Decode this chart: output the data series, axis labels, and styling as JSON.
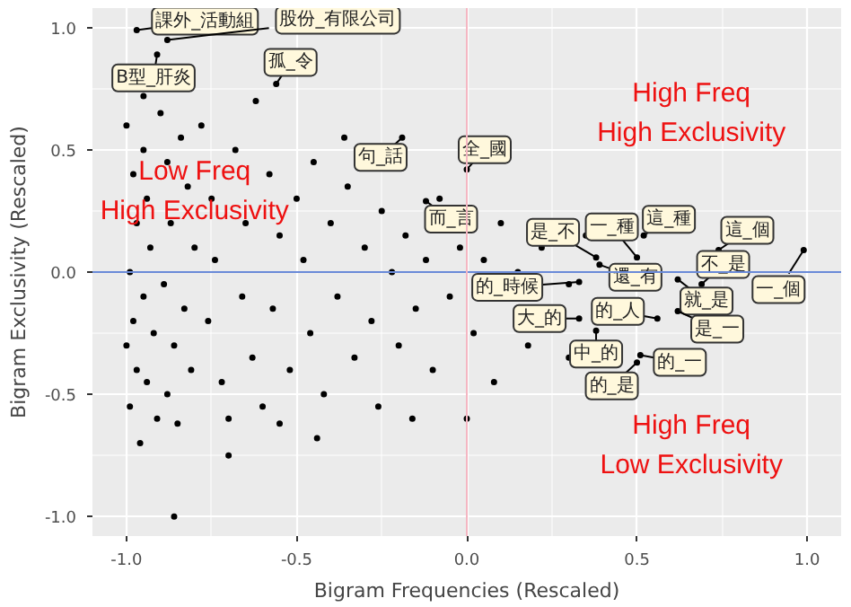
{
  "chart_data": {
    "type": "scatter",
    "xlabel": "Bigram Frequencies (Rescaled)",
    "ylabel": "Bigram Exclusivity (Rescaled)",
    "xlim": [
      -1.1,
      1.1
    ],
    "ylim": [
      -1.08,
      1.08
    ],
    "xticks": [
      {
        "value": -1,
        "label": "-1.0"
      },
      {
        "value": -0.5,
        "label": "-0.5"
      },
      {
        "value": 0,
        "label": "0.0"
      },
      {
        "value": 0.5,
        "label": "0.5"
      },
      {
        "value": 1,
        "label": "1.0"
      }
    ],
    "yticks": [
      {
        "value": -1,
        "label": "-1.0"
      },
      {
        "value": -0.5,
        "label": "-0.5"
      },
      {
        "value": 0,
        "label": "0.0"
      },
      {
        "value": 0.5,
        "label": "0.5"
      },
      {
        "value": 1,
        "label": "1.0"
      }
    ],
    "grid": true,
    "marker": "circle",
    "ref_lines": [
      {
        "axis": "y",
        "value": 0,
        "label": null,
        "color": "#6a8ad8"
      },
      {
        "axis": "x",
        "value": 0,
        "label": null,
        "color": "#f4b6c2"
      }
    ],
    "series": [
      {
        "color": "#000000",
        "x": [
          -1.0,
          -0.98,
          -0.97,
          -0.99,
          -0.98,
          -0.97,
          -0.99,
          -0.96,
          -1.0,
          -0.95,
          -0.94,
          -0.93,
          -0.95,
          -0.92,
          -0.94,
          -0.91,
          -0.9,
          -0.88,
          -0.87,
          -0.89,
          -0.86,
          -0.88,
          -0.85,
          -0.84,
          -0.82,
          -0.8,
          -0.83,
          -0.81,
          -0.86,
          -0.95,
          -0.78,
          -0.75,
          -0.74,
          -0.76,
          -0.72,
          -0.7,
          -0.68,
          -0.65,
          -0.66,
          -0.63,
          -0.6,
          -0.58,
          -0.55,
          -0.57,
          -0.52,
          -0.5,
          -0.62,
          -0.7,
          -0.55,
          -0.48,
          -0.46,
          -0.45,
          -0.42,
          -0.4,
          -0.38,
          -0.35,
          -0.33,
          -0.3,
          -0.28,
          -0.26,
          -0.25,
          -0.22,
          -0.2,
          -0.44,
          -0.36,
          -0.18,
          -0.15,
          -0.12,
          -0.1,
          -0.08,
          -0.05,
          -0.02,
          0.02,
          0.05,
          0.08,
          0.1,
          0.15,
          0.18,
          -0.16,
          0.0,
          0.22,
          0.3,
          0.35,
          0.3,
          -0.97,
          -0.88,
          -0.91,
          -0.56,
          -0.19,
          0.0,
          -0.12,
          0.38,
          0.39,
          0.5,
          0.52,
          0.62,
          0.74,
          0.69,
          0.99,
          0.33,
          0.33,
          0.56,
          0.62,
          0.38,
          0.51,
          0.5
        ],
        "values": [
          0.6,
          0.4,
          0.2,
          0.0,
          -0.2,
          -0.4,
          -0.55,
          -0.7,
          -0.3,
          0.5,
          0.3,
          0.1,
          -0.1,
          -0.25,
          -0.45,
          -0.6,
          0.65,
          0.45,
          0.2,
          -0.05,
          -0.3,
          -0.5,
          -0.62,
          0.55,
          0.35,
          0.1,
          -0.15,
          -0.4,
          -1.0,
          0.72,
          0.6,
          0.3,
          0.05,
          -0.2,
          -0.45,
          -0.6,
          0.5,
          0.2,
          -0.1,
          -0.35,
          -0.55,
          0.4,
          0.15,
          -0.15,
          -0.4,
          0.3,
          0.7,
          -0.75,
          -0.62,
          0.05,
          -0.25,
          0.45,
          -0.5,
          0.2,
          -0.1,
          0.35,
          -0.35,
          0.1,
          -0.2,
          -0.55,
          0.25,
          0.0,
          -0.3,
          -0.68,
          0.55,
          0.15,
          -0.15,
          0.05,
          -0.4,
          0.3,
          -0.1,
          0.1,
          -0.25,
          0.05,
          -0.45,
          0.2,
          0.0,
          -0.3,
          -0.6,
          -0.6,
          0.1,
          -0.35,
          0.15,
          -0.05,
          0.99,
          0.95,
          0.89,
          0.77,
          0.55,
          0.42,
          0.29,
          0.06,
          0.03,
          0.06,
          0.15,
          -0.03,
          0.09,
          -0.05,
          0.09,
          -0.04,
          -0.19,
          -0.19,
          -0.16,
          -0.24,
          -0.34,
          -0.37
        ]
      }
    ],
    "annotations": [
      {
        "text": "課外_活動組",
        "x": -0.97,
        "y": 0.99
      },
      {
        "text": "股份_有限公司",
        "x": -0.88,
        "y": 0.95
      },
      {
        "text": "B型_肝炎",
        "x": -0.91,
        "y": 0.89
      },
      {
        "text": "孤_令",
        "x": -0.56,
        "y": 0.77
      },
      {
        "text": "句_話",
        "x": -0.19,
        "y": 0.55
      },
      {
        "text": "全_國",
        "x": 0.0,
        "y": 0.42
      },
      {
        "text": "而_言",
        "x": -0.12,
        "y": 0.29
      },
      {
        "text": "是_不",
        "x": 0.38,
        "y": 0.06
      },
      {
        "text": "還_有",
        "x": 0.39,
        "y": 0.03
      },
      {
        "text": "一_種",
        "x": 0.5,
        "y": 0.06
      },
      {
        "text": "這_種",
        "x": 0.52,
        "y": 0.15
      },
      {
        "text": "就_是",
        "x": 0.62,
        "y": -0.03
      },
      {
        "text": "這_個",
        "x": 0.74,
        "y": 0.09
      },
      {
        "text": "不_是",
        "x": 0.69,
        "y": -0.05
      },
      {
        "text": "一_個",
        "x": 0.99,
        "y": 0.09
      },
      {
        "text": "的_時候",
        "x": 0.33,
        "y": -0.04
      },
      {
        "text": "大_的",
        "x": 0.33,
        "y": -0.19
      },
      {
        "text": "的_人",
        "x": 0.56,
        "y": -0.19
      },
      {
        "text": "是_一",
        "x": 0.62,
        "y": -0.16
      },
      {
        "text": "中_的",
        "x": 0.38,
        "y": -0.24
      },
      {
        "text": "的_一",
        "x": 0.51,
        "y": -0.34
      },
      {
        "text": "的_是",
        "x": 0.5,
        "y": -0.37
      },
      "Low Freq\nHigh Exclusivity",
      "High Freq\nHigh Exclusivity",
      "High Freq\nLow Exclusivity"
    ]
  }
}
